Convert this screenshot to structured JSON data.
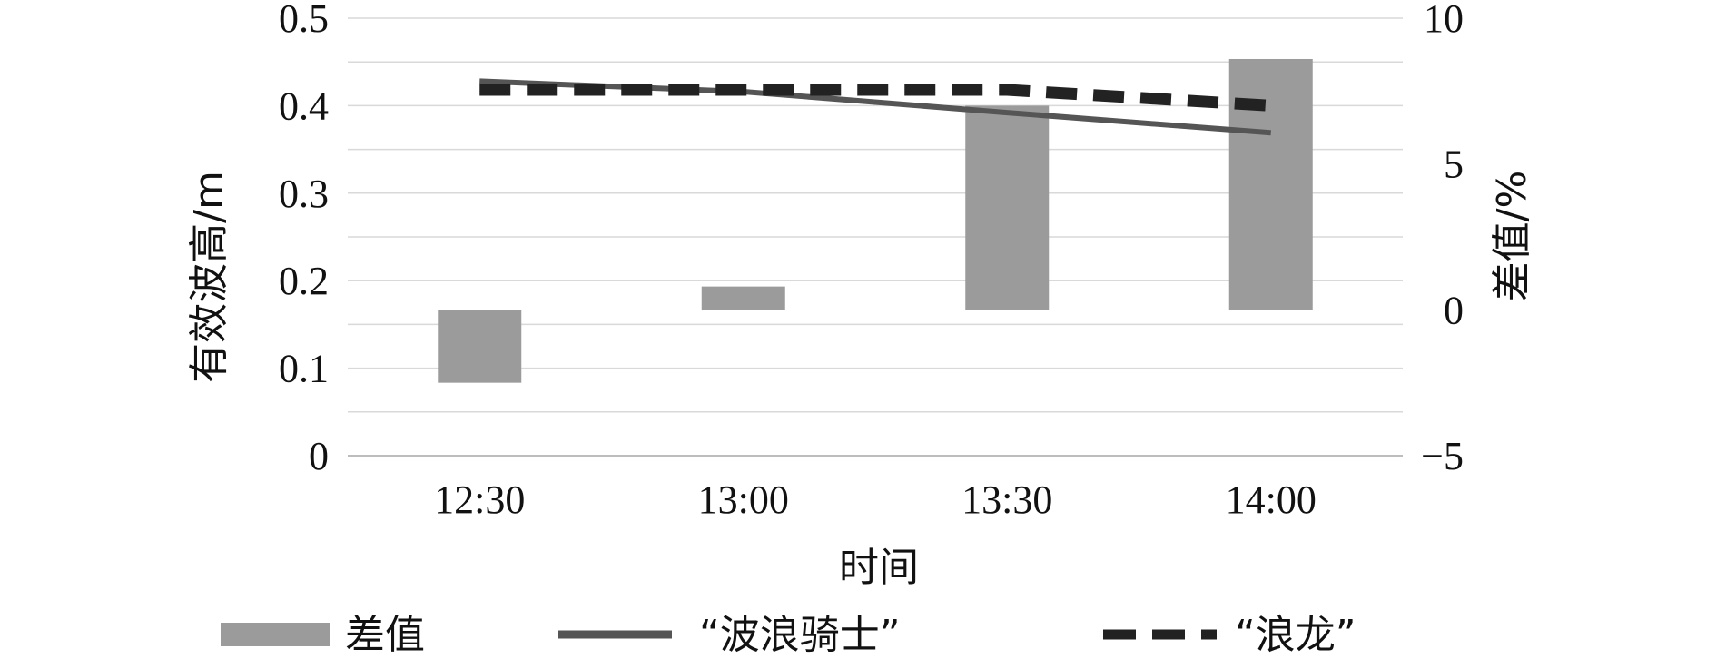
{
  "chart_data": {
    "type": "bar",
    "categories": [
      "12:30",
      "13:00",
      "13:30",
      "14:00"
    ],
    "xlabel": "时间",
    "ylabel": "有效波高/m",
    "ylabel_right": "差值/%",
    "ylim": [
      0,
      0.5
    ],
    "ylim_right": [
      -5,
      10
    ],
    "yticks": [
      "0",
      "0.1",
      "0.2",
      "0.3",
      "0.4",
      "0.5"
    ],
    "yticks_right": [
      "−5",
      "0",
      "5",
      "10"
    ],
    "grid": true,
    "legend_position": "bottom",
    "series": [
      {
        "name": "差值",
        "kind": "bar",
        "axis": "right",
        "values": [
          -2.5,
          0.8,
          7.0,
          8.6
        ],
        "color": "#9b9b9b"
      },
      {
        "name": "“波浪骑士”",
        "kind": "line",
        "axis": "left",
        "style": "solid",
        "values": [
          0.428,
          0.416,
          0.392,
          0.369
        ],
        "color": "#555555"
      },
      {
        "name": "“浪龙”",
        "kind": "line",
        "axis": "left",
        "style": "dashed",
        "values": [
          0.418,
          0.418,
          0.418,
          0.4
        ],
        "color": "#222222"
      }
    ]
  }
}
